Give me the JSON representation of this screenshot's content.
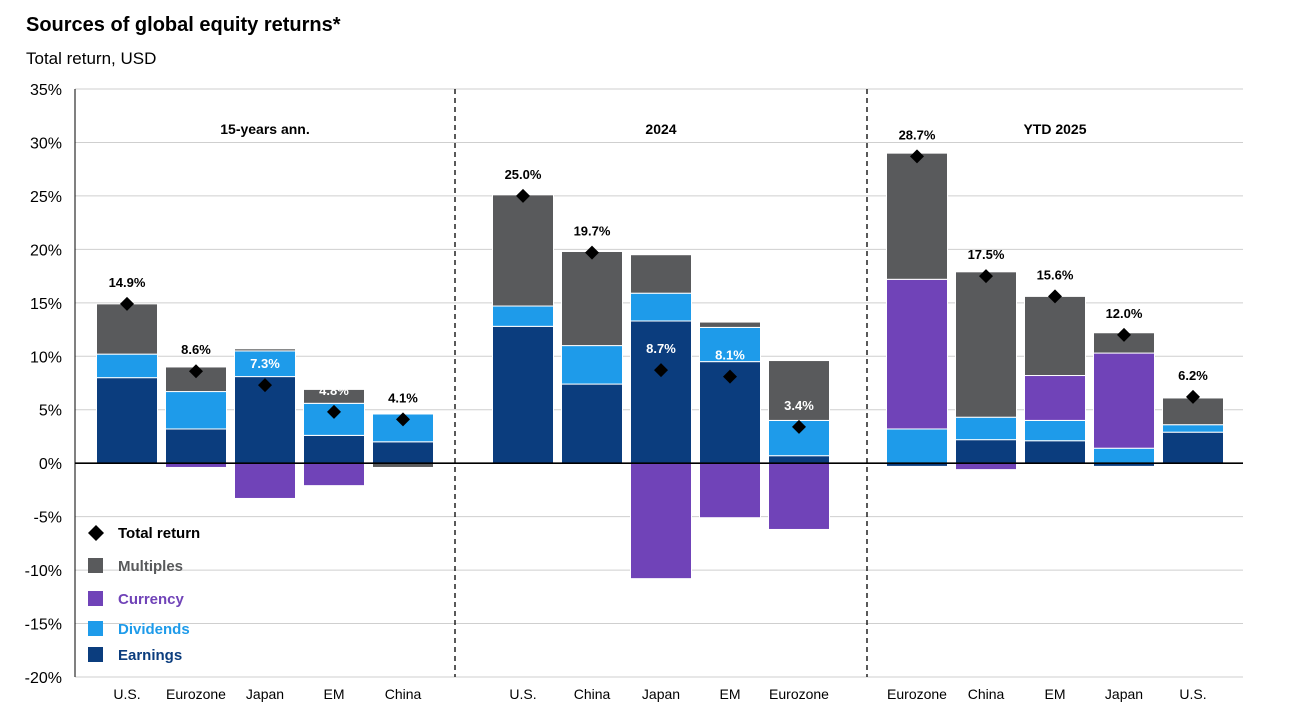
{
  "title": "Sources of global equity returns*",
  "subtitle": "Total return, USD",
  "colors": {
    "earnings": "#0b3d7e",
    "dividends": "#1e9bea",
    "currency": "#7043b8",
    "multiples": "#595a5c",
    "total_marker": "#000000",
    "gridline": "#cfcfcf"
  },
  "chart_data": {
    "type": "bar",
    "stacked": true,
    "ylim": [
      -20,
      35
    ],
    "yticks": [
      -20,
      -15,
      -10,
      -5,
      0,
      5,
      10,
      15,
      20,
      25,
      30,
      35
    ],
    "ytick_labels": [
      "-20%",
      "-15%",
      "-10%",
      "-5%",
      "0%",
      "5%",
      "10%",
      "15%",
      "20%",
      "25%",
      "30%",
      "35%"
    ],
    "grid": true,
    "legend_placement": "bottom-left",
    "legend": [
      {
        "key": "total",
        "label": "Total return",
        "marker": "diamond",
        "color": "#000000"
      },
      {
        "key": "multiples",
        "label": "Multiples",
        "marker": "square",
        "color": "#595a5c"
      },
      {
        "key": "currency",
        "label": "Currency",
        "marker": "square",
        "color": "#7043b8"
      },
      {
        "key": "dividends",
        "label": "Dividends",
        "marker": "square",
        "color": "#1e9bea"
      },
      {
        "key": "earnings",
        "label": "Earnings",
        "marker": "square",
        "color": "#0b3d7e"
      }
    ],
    "panels": [
      {
        "title": "15-years ann.",
        "bars": [
          {
            "category": "U.S.",
            "earnings": 8.0,
            "dividends": 2.2,
            "multiples": 4.7,
            "currency": 0.0,
            "total": 14.9,
            "total_label": "14.9%"
          },
          {
            "category": "Eurozone",
            "earnings": 3.2,
            "dividends": 3.5,
            "multiples": 2.3,
            "currency": -0.4,
            "total": 8.6,
            "total_label": "8.6%"
          },
          {
            "category": "Japan",
            "earnings": 8.1,
            "dividends": 2.4,
            "multiples": 0.2,
            "currency": -3.3,
            "total": 7.3,
            "total_label": "7.3%"
          },
          {
            "category": "EM",
            "earnings": 2.6,
            "dividends": 3.0,
            "multiples": 1.3,
            "currency": -2.1,
            "total": 4.8,
            "total_label": "4.8%"
          },
          {
            "category": "China",
            "earnings": 2.0,
            "dividends": 2.6,
            "multiples": -0.4,
            "currency": 0.0,
            "total": 4.1,
            "total_label": "4.1%"
          }
        ]
      },
      {
        "title": "2024",
        "bars": [
          {
            "category": "U.S.",
            "earnings": 12.8,
            "dividends": 1.9,
            "multiples": 10.4,
            "currency": 0.0,
            "total": 25.0,
            "total_label": "25.0%"
          },
          {
            "category": "China",
            "earnings": 7.4,
            "dividends": 3.6,
            "multiples": 8.8,
            "currency": 0.0,
            "total": 19.7,
            "total_label": "19.7%"
          },
          {
            "category": "Japan",
            "earnings": 13.3,
            "dividends": 2.6,
            "multiples": 3.6,
            "currency": -10.8,
            "total": 8.7,
            "total_label": "8.7%"
          },
          {
            "category": "EM",
            "earnings": 9.5,
            "dividends": 3.2,
            "multiples": 0.5,
            "currency": -5.1,
            "total": 8.1,
            "total_label": "8.1%"
          },
          {
            "category": "Eurozone",
            "earnings": 0.7,
            "dividends": 3.3,
            "multiples": 5.6,
            "currency": -6.2,
            "total": 3.4,
            "total_label": "3.4%"
          }
        ]
      },
      {
        "title": "YTD 2025",
        "bars": [
          {
            "category": "Eurozone",
            "earnings": -0.3,
            "dividends": 3.2,
            "multiples": 11.8,
            "currency": 14.0,
            "total": 28.7,
            "total_label": "28.7%"
          },
          {
            "category": "China",
            "earnings": 2.2,
            "dividends": 2.1,
            "multiples": 13.6,
            "currency": -0.6,
            "total": 17.5,
            "total_label": "17.5%"
          },
          {
            "category": "EM",
            "earnings": 2.1,
            "dividends": 1.9,
            "multiples": 7.4,
            "currency": 4.2,
            "total": 15.6,
            "total_label": "15.6%"
          },
          {
            "category": "Japan",
            "earnings": -0.3,
            "dividends": 1.4,
            "multiples": 1.9,
            "currency": 8.9,
            "total": 12.0,
            "total_label": "12.0%"
          },
          {
            "category": "U.S.",
            "earnings": 2.9,
            "dividends": 0.7,
            "multiples": 2.5,
            "currency": 0.0,
            "total": 6.2,
            "total_label": "6.2%"
          }
        ]
      }
    ]
  }
}
